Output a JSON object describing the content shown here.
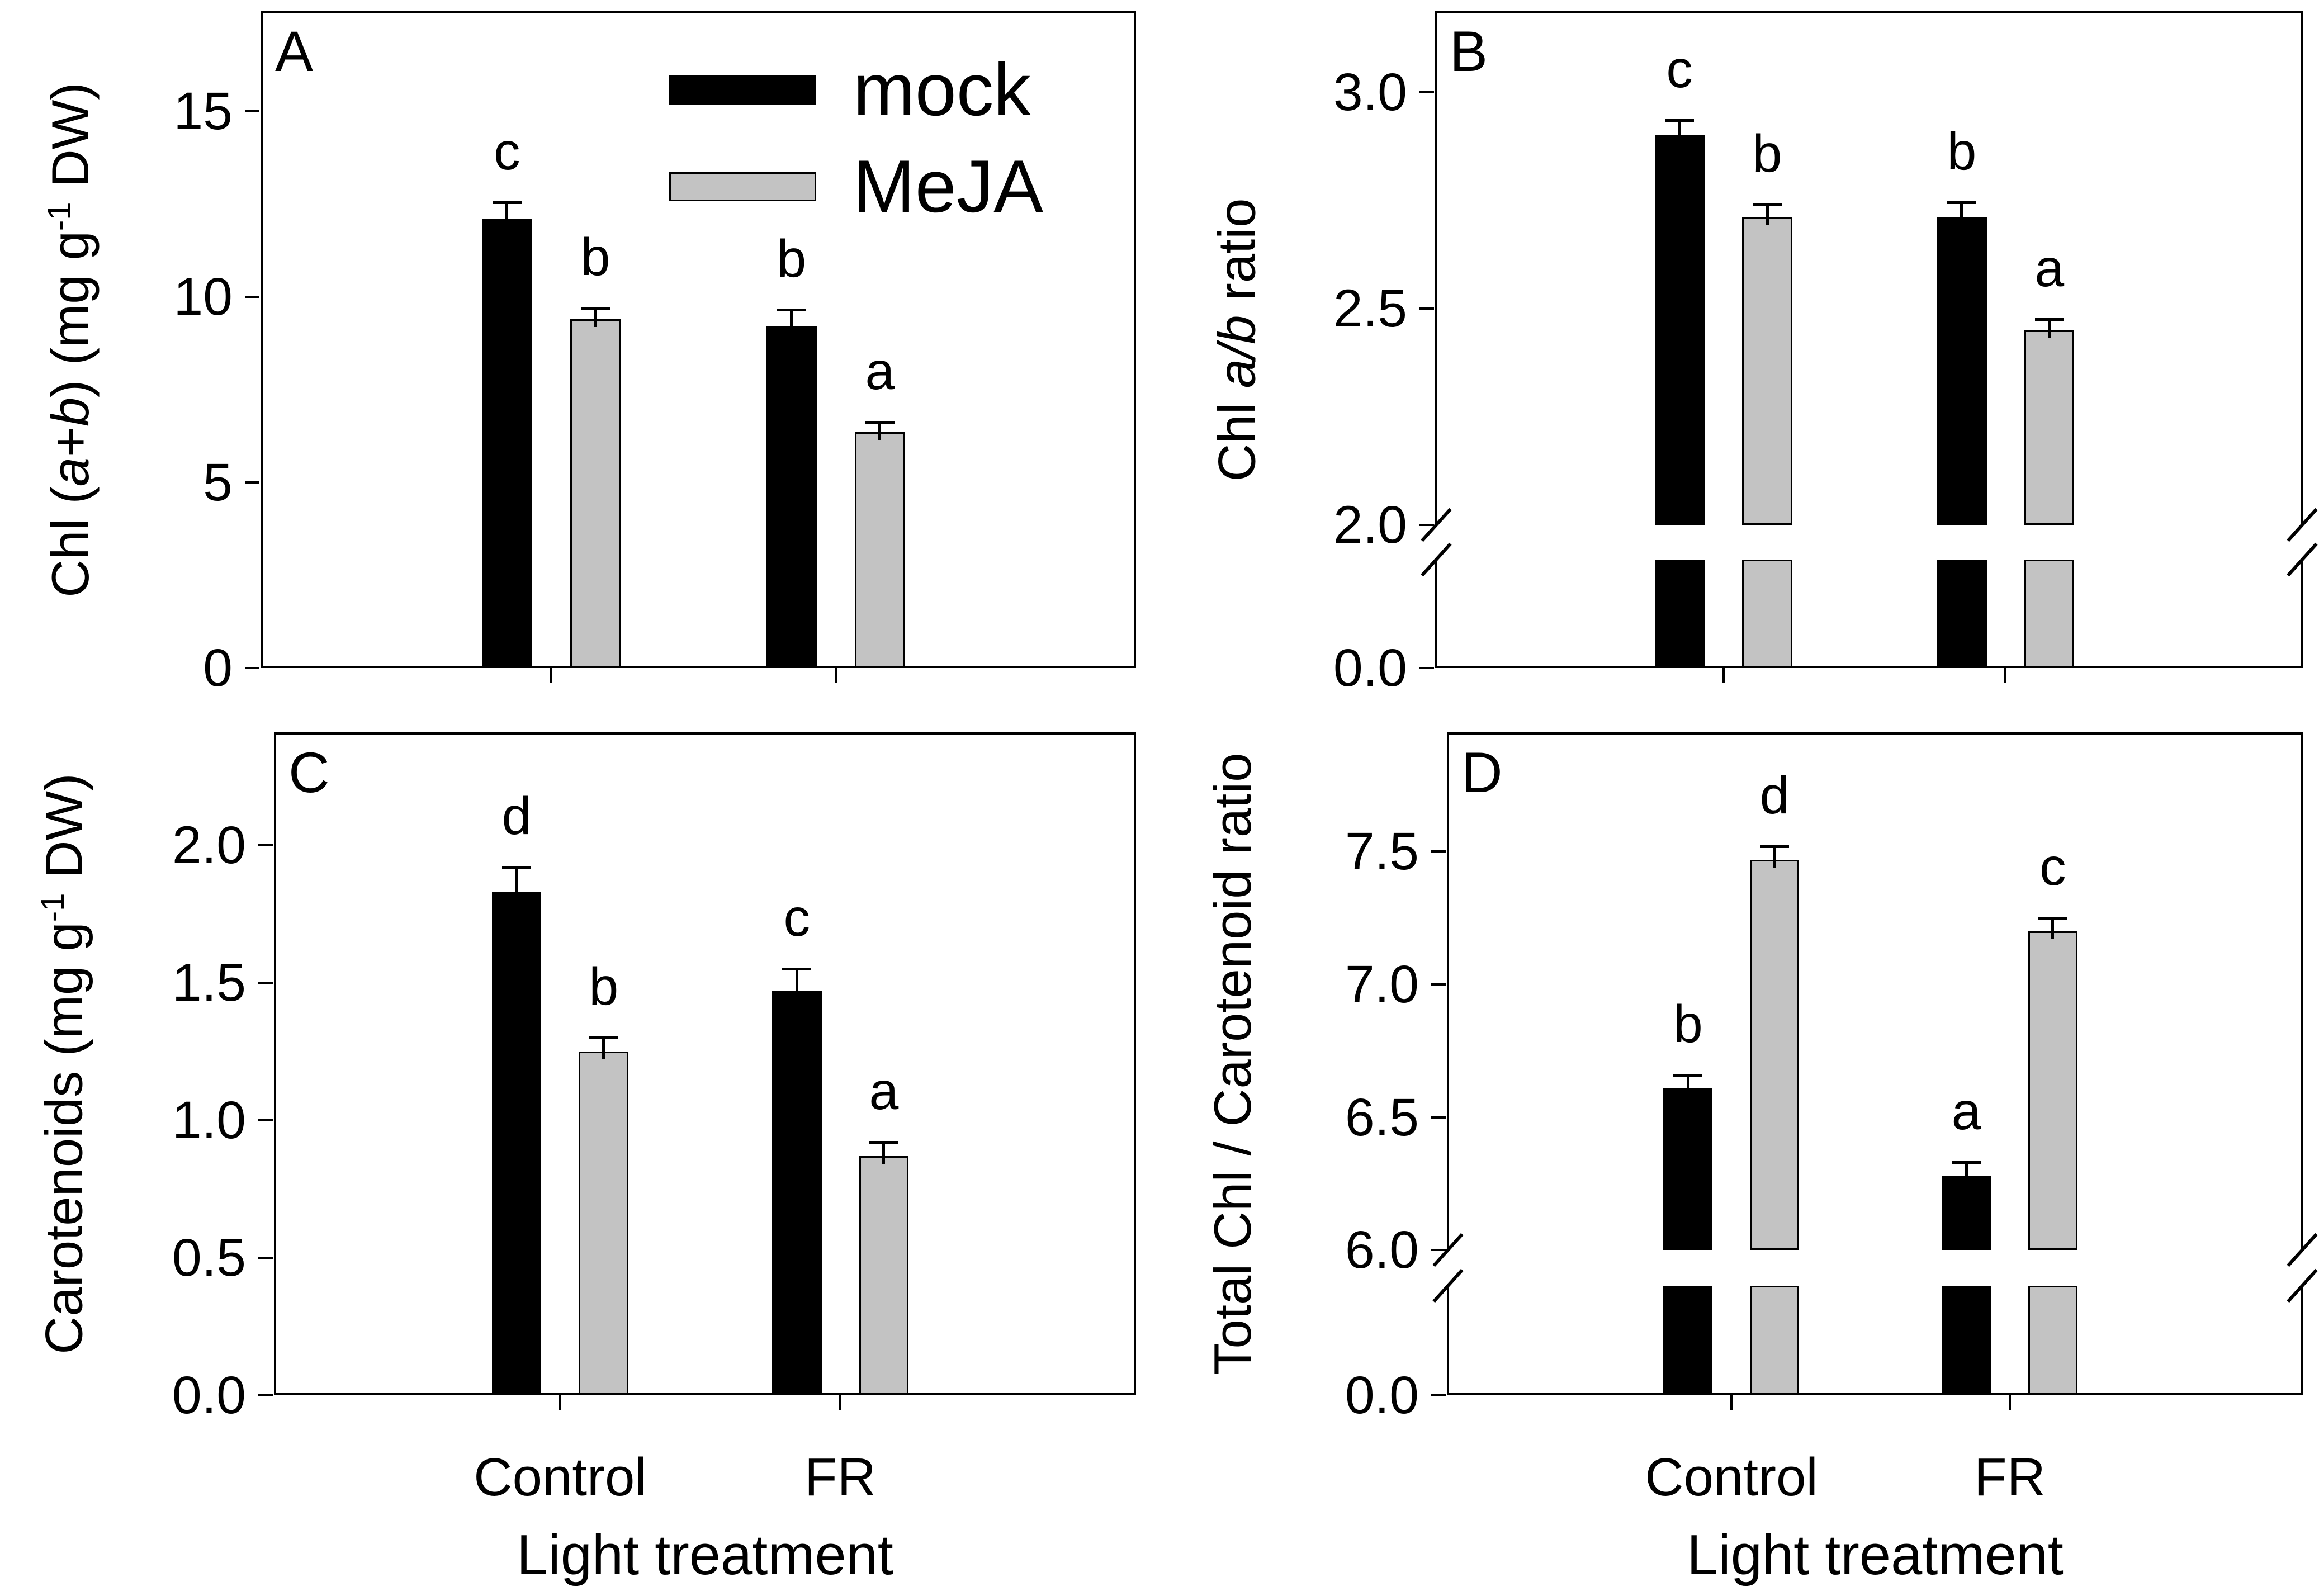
{
  "figure_background": "#ffffff",
  "colors": {
    "mock": "#000000",
    "meja": "#c3c3c3",
    "bar_border": "#000000",
    "axis": "#000000",
    "text": "#000000"
  },
  "legend": {
    "items": [
      {
        "label": "mock",
        "color": "#000000"
      },
      {
        "label": "MeJA",
        "color": "#c3c3c3"
      }
    ]
  },
  "x_axis": {
    "categories": [
      "Control",
      "FR"
    ],
    "title": "Light treatment"
  },
  "chart_data": [
    {
      "type": "bar",
      "panel_letter": "A",
      "ylabel": "Chl (a+b) (mg g⁻¹ DW)",
      "ylabel_rich": [
        {
          "t": "Chl ("
        },
        {
          "t": "a",
          "i": true
        },
        {
          "t": "+"
        },
        {
          "t": "b",
          "i": true
        },
        {
          "t": ") (mg g"
        },
        {
          "t": "-1",
          "sup": true
        },
        {
          "t": " DW)"
        }
      ],
      "categories": [
        "Control",
        "FR"
      ],
      "series": [
        {
          "name": "mock",
          "color": "#000000",
          "values": [
            12.1,
            9.2
          ],
          "errors": [
            0.45,
            0.45
          ],
          "letters": [
            "c",
            "b"
          ]
        },
        {
          "name": "MeJA",
          "color": "#c3c3c3",
          "values": [
            9.4,
            6.35
          ],
          "errors": [
            0.3,
            0.28
          ],
          "letters": [
            "b",
            "a"
          ]
        }
      ],
      "yticks": [
        {
          "v": 0,
          "label": "0"
        },
        {
          "v": 5,
          "label": "5"
        },
        {
          "v": 10,
          "label": "10"
        },
        {
          "v": 15,
          "label": "15"
        }
      ],
      "ylim_top": 17.7,
      "break": null
    },
    {
      "type": "bar",
      "panel_letter": "B",
      "ylabel": "Chl a/b ratio",
      "ylabel_rich": [
        {
          "t": "Chl "
        },
        {
          "t": "a/b",
          "i": true
        },
        {
          "t": " ratio"
        }
      ],
      "categories": [
        "Control",
        "FR"
      ],
      "series": [
        {
          "name": "mock",
          "color": "#000000",
          "values": [
            2.9,
            2.71
          ],
          "errors": [
            0.035,
            0.035
          ],
          "letters": [
            "c",
            "b"
          ]
        },
        {
          "name": "MeJA",
          "color": "#c3c3c3",
          "values": [
            2.71,
            2.45
          ],
          "errors": [
            0.03,
            0.025
          ],
          "letters": [
            "b",
            "a"
          ]
        }
      ],
      "yticks": [
        {
          "v": 0,
          "label": "0.0"
        },
        {
          "v": 2.0,
          "label": "2.0"
        },
        {
          "v": 2.5,
          "label": "2.5"
        },
        {
          "v": 3.0,
          "label": "3.0"
        }
      ],
      "ylim_top": 3.19,
      "break": {
        "value": 2.0,
        "stub_top_frac": 0.165,
        "gap_top_frac": 0.218,
        "frac_per_unit": 0.6585
      }
    },
    {
      "type": "bar",
      "panel_letter": "C",
      "ylabel": "Carotenoids (mg g⁻¹ DW)",
      "ylabel_rich": [
        {
          "t": "Carotenoids (mg g"
        },
        {
          "t": "-1",
          "sup": true
        },
        {
          "t": " DW)"
        }
      ],
      "categories": [
        "Control",
        "FR"
      ],
      "series": [
        {
          "name": "mock",
          "color": "#000000",
          "values": [
            1.83,
            1.47
          ],
          "errors": [
            0.09,
            0.08
          ],
          "letters": [
            "d",
            "c"
          ]
        },
        {
          "name": "MeJA",
          "color": "#c3c3c3",
          "values": [
            1.25,
            0.87
          ],
          "errors": [
            0.05,
            0.05
          ],
          "letters": [
            "b",
            "a"
          ]
        }
      ],
      "yticks": [
        {
          "v": 0,
          "label": "0.0"
        },
        {
          "v": 0.5,
          "label": "0.5"
        },
        {
          "v": 1.0,
          "label": "1.0"
        },
        {
          "v": 1.5,
          "label": "1.5"
        },
        {
          "v": 2.0,
          "label": "2.0"
        }
      ],
      "ylim_top": 2.41,
      "break": null
    },
    {
      "type": "bar",
      "panel_letter": "D",
      "ylabel": "Total Chl / Carotenoid ratio",
      "ylabel_rich": [
        {
          "t": "Total Chl / Carotenoid ratio"
        }
      ],
      "categories": [
        "Control",
        "FR"
      ],
      "series": [
        {
          "name": "mock",
          "color": "#000000",
          "values": [
            6.61,
            6.28
          ],
          "errors": [
            0.05,
            0.05
          ],
          "letters": [
            "b",
            "a"
          ]
        },
        {
          "name": "MeJA",
          "color": "#c3c3c3",
          "values": [
            7.47,
            7.2
          ],
          "errors": [
            0.05,
            0.05
          ],
          "letters": [
            "d",
            "c"
          ]
        }
      ],
      "yticks": [
        {
          "v": 0,
          "label": "0.0"
        },
        {
          "v": 6.0,
          "label": "6.0"
        },
        {
          "v": 6.5,
          "label": "6.5"
        },
        {
          "v": 7.0,
          "label": "7.0"
        },
        {
          "v": 7.5,
          "label": "7.5"
        }
      ],
      "ylim_top": 7.95,
      "break": {
        "value": 6.0,
        "stub_top_frac": 0.165,
        "gap_top_frac": 0.219,
        "frac_per_unit": 0.4008
      }
    }
  ]
}
